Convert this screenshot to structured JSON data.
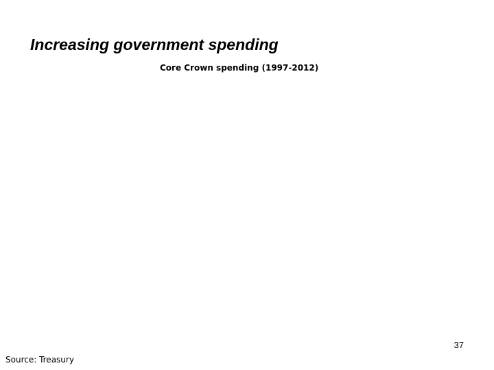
{
  "slide": {
    "title": "Increasing government spending",
    "chart_title": "Core Crown spending (1997-2012)",
    "page_number": "37",
    "source": "Source: Treasury"
  }
}
